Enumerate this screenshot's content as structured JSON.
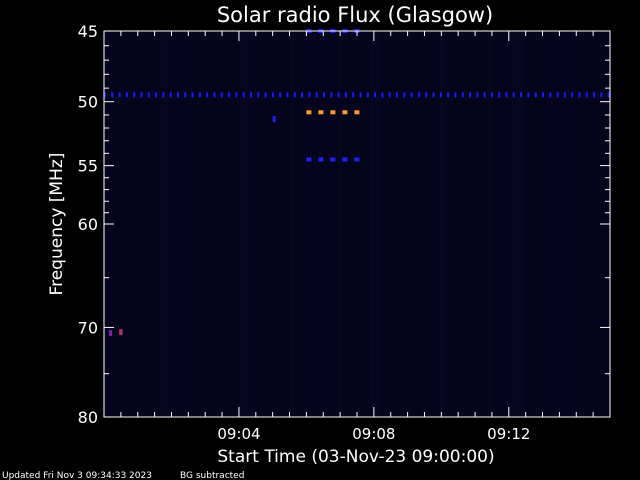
{
  "chart_data": {
    "type": "heatmap",
    "title": "Solar radio Flux (Glasgow)",
    "xlabel": "Start Time (03-Nov-23 09:00:00)",
    "ylabel": "Frequency [MHz]",
    "footer_updated": "Updated Fri Nov  3 09:34:33 2023",
    "footer_note": "BG subtracted",
    "x_range_minutes": [
      0,
      15
    ],
    "y_range_mhz": [
      45,
      80
    ],
    "y_scale": "log",
    "x_ticks": [
      {
        "minute": 4,
        "label": "09:04"
      },
      {
        "minute": 8,
        "label": "09:08"
      },
      {
        "minute": 12,
        "label": "09:12"
      }
    ],
    "y_ticks": [
      {
        "mhz": 45,
        "label": "45"
      },
      {
        "mhz": 50,
        "label": "50"
      },
      {
        "mhz": 55,
        "label": "55"
      },
      {
        "mhz": 60,
        "label": "60"
      },
      {
        "mhz": 70,
        "label": "70"
      },
      {
        "mhz": 80,
        "label": "80"
      }
    ],
    "y_minor_ticks_mhz": [
      46,
      47,
      48,
      49,
      51,
      52,
      53,
      54,
      56,
      57,
      58,
      59,
      65,
      75
    ],
    "x_minor_tick_step_minutes": 0.5,
    "features": [
      {
        "name": "interference-band",
        "mhz": 49.5,
        "minutes_from": 0,
        "minutes_to": 15,
        "color": "#1a1aff",
        "dashed": true
      },
      {
        "name": "burst-band",
        "mhz": 50.8,
        "minutes_from": 6,
        "minutes_to": 7.6,
        "color": "#ff9a30",
        "dashed": true
      },
      {
        "name": "upper-band",
        "mhz": 45.0,
        "minutes_from": 6,
        "minutes_to": 7.6,
        "color": "#2020ff",
        "dashed": true
      },
      {
        "name": "lower-band",
        "mhz": 54.5,
        "minutes_from": 6,
        "minutes_to": 7.6,
        "color": "#2020ff",
        "dashed": true
      },
      {
        "name": "spot",
        "mhz": 51.3,
        "minutes_from": 5.0,
        "minutes_to": 5.05,
        "color": "#2020ff",
        "dashed": false
      },
      {
        "name": "spot",
        "mhz": 70.5,
        "minutes_from": 0.45,
        "minutes_to": 0.55,
        "color": "#b03060",
        "dashed": false
      },
      {
        "name": "spot",
        "mhz": 70.6,
        "minutes_from": 0.15,
        "minutes_to": 0.2,
        "color": "#8020a0",
        "dashed": false
      }
    ],
    "colors": {
      "background": "#000000",
      "plot_background": "#05051a",
      "axis": "#ffffff",
      "text": "#ffffff"
    }
  }
}
